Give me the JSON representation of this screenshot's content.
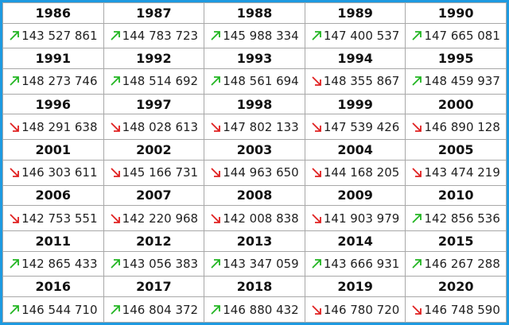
{
  "table": {
    "rows": [
      {
        "years": [
          "1986",
          "1987",
          "1988",
          "1989",
          "1990"
        ],
        "values": [
          {
            "text": "143 527 861",
            "trend": "up"
          },
          {
            "text": "144 783 723",
            "trend": "up"
          },
          {
            "text": "145 988 334",
            "trend": "up"
          },
          {
            "text": "147 400 537",
            "trend": "up"
          },
          {
            "text": "147 665 081",
            "trend": "up"
          }
        ]
      },
      {
        "years": [
          "1991",
          "1992",
          "1993",
          "1994",
          "1995"
        ],
        "values": [
          {
            "text": "148 273 746",
            "trend": "up"
          },
          {
            "text": "148 514 692",
            "trend": "up"
          },
          {
            "text": "148 561 694",
            "trend": "up"
          },
          {
            "text": "148 355 867",
            "trend": "down"
          },
          {
            "text": "148 459 937",
            "trend": "up"
          }
        ]
      },
      {
        "years": [
          "1996",
          "1997",
          "1998",
          "1999",
          "2000"
        ],
        "values": [
          {
            "text": "148 291 638",
            "trend": "down"
          },
          {
            "text": "148 028 613",
            "trend": "down"
          },
          {
            "text": "147 802 133",
            "trend": "down"
          },
          {
            "text": "147 539 426",
            "trend": "down"
          },
          {
            "text": "146 890 128",
            "trend": "down"
          }
        ]
      },
      {
        "years": [
          "2001",
          "2002",
          "2003",
          "2004",
          "2005"
        ],
        "values": [
          {
            "text": "146 303 611",
            "trend": "down"
          },
          {
            "text": "145 166 731",
            "trend": "down"
          },
          {
            "text": "144 963 650",
            "trend": "down"
          },
          {
            "text": "144 168 205",
            "trend": "down"
          },
          {
            "text": "143 474 219",
            "trend": "down"
          }
        ]
      },
      {
        "years": [
          "2006",
          "2007",
          "2008",
          "2009",
          "2010"
        ],
        "values": [
          {
            "text": "142 753 551",
            "trend": "down"
          },
          {
            "text": "142 220 968",
            "trend": "down"
          },
          {
            "text": "142 008 838",
            "trend": "down"
          },
          {
            "text": "141 903 979",
            "trend": "down"
          },
          {
            "text": "142 856 536",
            "trend": "up"
          }
        ]
      },
      {
        "years": [
          "2011",
          "2012",
          "2013",
          "2014",
          "2015"
        ],
        "values": [
          {
            "text": "142 865 433",
            "trend": "up"
          },
          {
            "text": "143 056 383",
            "trend": "up"
          },
          {
            "text": "143 347 059",
            "trend": "up"
          },
          {
            "text": "143 666 931",
            "trend": "up"
          },
          {
            "text": "146 267 288",
            "trend": "up"
          }
        ]
      },
      {
        "years": [
          "2016",
          "2017",
          "2018",
          "2019",
          "2020"
        ],
        "values": [
          {
            "text": "146 544 710",
            "trend": "up"
          },
          {
            "text": "146 804 372",
            "trend": "up"
          },
          {
            "text": "146 880 432",
            "trend": "up"
          },
          {
            "text": "146 780 720",
            "trend": "down"
          },
          {
            "text": "146 748 590",
            "trend": "down"
          }
        ]
      }
    ]
  }
}
